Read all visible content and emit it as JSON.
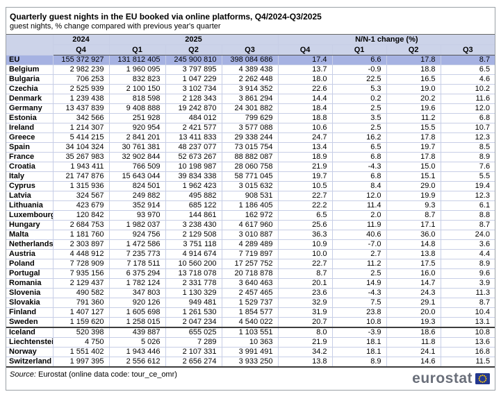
{
  "header": {
    "title": "Quarterly guest nights in the EU booked via online platforms, Q4/2024-Q3/2025",
    "subtitle": "guest nights, % change compared with previous year's quarter"
  },
  "chart_data": {
    "type": "table",
    "title": "Quarterly guest nights in the EU booked via online platforms, Q4/2024-Q3/2025",
    "unit_note": "guest nights, % change compared with previous year's quarter",
    "column_groups": [
      {
        "label": "2024",
        "span": 1
      },
      {
        "label": "2025",
        "span": 3
      },
      {
        "label": "N/N-1 change (%)",
        "span": 4
      }
    ],
    "quarters": [
      "Q4",
      "Q1",
      "Q2",
      "Q3",
      "Q4",
      "Q1",
      "Q2",
      "Q3"
    ],
    "rows": [
      {
        "name": "EU",
        "aggregate": true,
        "guest_nights": [
          "155 372 927",
          "131 812 405",
          "245 900 810",
          "398 084 686"
        ],
        "changes": [
          "17.4",
          "6.6",
          "17.8",
          "8.7"
        ]
      },
      {
        "name": "Belgium",
        "guest_nights": [
          "2 982 239",
          "1 960 095",
          "3 797 895",
          "4 389 438"
        ],
        "changes": [
          "13.7",
          "-0.9",
          "18.8",
          "6.5"
        ]
      },
      {
        "name": "Bulgaria",
        "guest_nights": [
          "706 253",
          "832 823",
          "1 047 229",
          "2 262 448"
        ],
        "changes": [
          "18.0",
          "22.5",
          "16.5",
          "4.6"
        ]
      },
      {
        "name": "Czechia",
        "guest_nights": [
          "2 525 939",
          "2 100 150",
          "3 102 734",
          "3 914 352"
        ],
        "changes": [
          "22.6",
          "5.3",
          "19.0",
          "10.2"
        ]
      },
      {
        "name": "Denmark",
        "guest_nights": [
          "1 239 438",
          "818 598",
          "2 128 343",
          "3 861 294"
        ],
        "changes": [
          "14.4",
          "0.2",
          "20.2",
          "11.6"
        ]
      },
      {
        "name": "Germany",
        "guest_nights": [
          "13 437 839",
          "9 408 888",
          "19 242 870",
          "24 301 882"
        ],
        "changes": [
          "18.4",
          "2.5",
          "19.6",
          "12.0"
        ]
      },
      {
        "name": "Estonia",
        "guest_nights": [
          "342 566",
          "251 928",
          "484 012",
          "799 629"
        ],
        "changes": [
          "18.8",
          "3.5",
          "11.2",
          "6.8"
        ]
      },
      {
        "name": "Ireland",
        "guest_nights": [
          "1 214 307",
          "920 954",
          "2 421 577",
          "3 577 088"
        ],
        "changes": [
          "10.6",
          "2.5",
          "15.5",
          "10.7"
        ]
      },
      {
        "name": "Greece",
        "guest_nights": [
          "5 414 215",
          "2 841 201",
          "13 411 833",
          "29 338 244"
        ],
        "changes": [
          "24.7",
          "16.2",
          "17.8",
          "12.3"
        ]
      },
      {
        "name": "Spain",
        "guest_nights": [
          "34 104 324",
          "30 761 381",
          "48 237 077",
          "73 015 754"
        ],
        "changes": [
          "13.4",
          "6.5",
          "19.7",
          "8.5"
        ]
      },
      {
        "name": "France",
        "guest_nights": [
          "35 267 983",
          "32 902 844",
          "52 673 267",
          "88 882 087"
        ],
        "changes": [
          "18.9",
          "6.8",
          "17.8",
          "8.9"
        ]
      },
      {
        "name": "Croatia",
        "guest_nights": [
          "1 943 411",
          "766 509",
          "10 198 987",
          "28 060 758"
        ],
        "changes": [
          "21.9",
          "-4.3",
          "15.0",
          "7.6"
        ]
      },
      {
        "name": "Italy",
        "guest_nights": [
          "21 747 876",
          "15 643 044",
          "39 834 338",
          "58 771 045"
        ],
        "changes": [
          "19.7",
          "6.8",
          "15.1",
          "5.5"
        ]
      },
      {
        "name": "Cyprus",
        "guest_nights": [
          "1 315 936",
          "824 501",
          "1 962 423",
          "3 015 632"
        ],
        "changes": [
          "10.5",
          "8.4",
          "29.0",
          "19.4"
        ]
      },
      {
        "name": "Latvia",
        "guest_nights": [
          "324 567",
          "249 882",
          "495 882",
          "908 531"
        ],
        "changes": [
          "22.7",
          "12.0",
          "19.9",
          "12.3"
        ]
      },
      {
        "name": "Lithuania",
        "guest_nights": [
          "423 679",
          "352 914",
          "685 122",
          "1 186 405"
        ],
        "changes": [
          "22.2",
          "11.4",
          "9.3",
          "6.1"
        ]
      },
      {
        "name": "Luxembourg",
        "guest_nights": [
          "120 842",
          "93 970",
          "144 861",
          "162 972"
        ],
        "changes": [
          "6.5",
          "2.0",
          "8.7",
          "8.8"
        ]
      },
      {
        "name": "Hungary",
        "guest_nights": [
          "2 684 753",
          "1 982 037",
          "3 238 430",
          "4 617 960"
        ],
        "changes": [
          "25.6",
          "11.9",
          "17.1",
          "8.7"
        ]
      },
      {
        "name": "Malta",
        "guest_nights": [
          "1 181 760",
          "924 756",
          "2 129 508",
          "3 010 887"
        ],
        "changes": [
          "36.3",
          "40.6",
          "36.0",
          "24.0"
        ]
      },
      {
        "name": "Netherlands",
        "guest_nights": [
          "2 303 897",
          "1 472 586",
          "3 751 118",
          "4 289 489"
        ],
        "changes": [
          "10.9",
          "-7.0",
          "14.8",
          "3.6"
        ]
      },
      {
        "name": "Austria",
        "guest_nights": [
          "4 448 912",
          "7 235 773",
          "4 914 674",
          "7 719 897"
        ],
        "changes": [
          "10.0",
          "2.7",
          "13.8",
          "4.4"
        ]
      },
      {
        "name": "Poland",
        "guest_nights": [
          "7 728 909",
          "7 178 511",
          "10 560 200",
          "17 257 752"
        ],
        "changes": [
          "22.7",
          "11.2",
          "17.5",
          "8.9"
        ]
      },
      {
        "name": "Portugal",
        "guest_nights": [
          "7 935 156",
          "6 375 294",
          "13 718 078",
          "20 718 878"
        ],
        "changes": [
          "8.7",
          "2.5",
          "16.0",
          "9.6"
        ]
      },
      {
        "name": "Romania",
        "guest_nights": [
          "2 129 437",
          "1 782 124",
          "2 331 778",
          "3 640 463"
        ],
        "changes": [
          "20.1",
          "14.9",
          "14.7",
          "3.9"
        ]
      },
      {
        "name": "Slovenia",
        "guest_nights": [
          "490 582",
          "347 803",
          "1 130 329",
          "2 457 465"
        ],
        "changes": [
          "23.6",
          "-4.3",
          "24.3",
          "11.3"
        ]
      },
      {
        "name": "Slovakia",
        "guest_nights": [
          "791 360",
          "920 126",
          "949 481",
          "1 529 737"
        ],
        "changes": [
          "32.9",
          "7.5",
          "29.1",
          "8.7"
        ]
      },
      {
        "name": "Finland",
        "guest_nights": [
          "1 407 127",
          "1 605 698",
          "1 261 530",
          "1 854 577"
        ],
        "changes": [
          "31.9",
          "23.8",
          "20.0",
          "10.4"
        ]
      },
      {
        "name": "Sweden",
        "guest_nights": [
          "1 159 620",
          "1 258 015",
          "2 047 234",
          "4 540 022"
        ],
        "changes": [
          "20.7",
          "10.8",
          "19.3",
          "13.1"
        ]
      },
      {
        "name": "Iceland",
        "group_start": true,
        "guest_nights": [
          "520 398",
          "439 887",
          "655 025",
          "1 103 551"
        ],
        "changes": [
          "8.0",
          "-3.9",
          "18.6",
          "10.8"
        ]
      },
      {
        "name": "Liechtenstein",
        "guest_nights": [
          "4 750",
          "5 026",
          "7 289",
          "10 363"
        ],
        "changes": [
          "21.9",
          "18.1",
          "11.8",
          "13.6"
        ]
      },
      {
        "name": "Norway",
        "guest_nights": [
          "1 551 402",
          "1 943 446",
          "2 107 331",
          "3 991 491"
        ],
        "changes": [
          "34.2",
          "18.1",
          "24.1",
          "16.8"
        ]
      },
      {
        "name": "Switzerland",
        "guest_nights": [
          "1 997 395",
          "2 556 612",
          "2 656 274",
          "3 933 250"
        ],
        "changes": [
          "13.8",
          "8.9",
          "14.6",
          "11.5"
        ]
      }
    ]
  },
  "footer": {
    "source_label": "Source:",
    "source_text": " Eurostat (online data code: tour_ce_omr)",
    "logo_text": "eurostat"
  },
  "colors": {
    "header_band": "#ccd3e9",
    "eu_row": "#a6b2e2",
    "grid": "#c7cee6",
    "heavy_line": "#3c3c3c",
    "logo_text": "#6a6f7a",
    "flag_blue": "#24388f",
    "flag_stars": "#ffcc00"
  }
}
